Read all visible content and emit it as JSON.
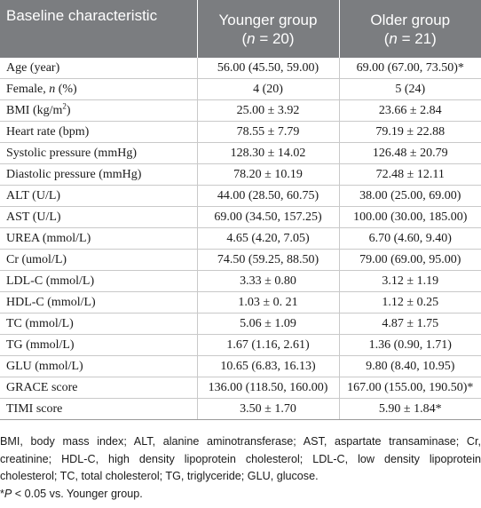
{
  "header": {
    "col1": "Baseline characteristic",
    "col2_line1": "Younger group",
    "col2_n_prefix": "(",
    "col2_n_italic": "n",
    "col2_n_suffix": " = 20)",
    "col3_line1": "Older group",
    "col3_n_prefix": "(",
    "col3_n_italic": "n",
    "col3_n_suffix": " = 21)"
  },
  "rows": {
    "age": {
      "label": "Age (year)",
      "younger": "56.00 (45.50, 59.00)",
      "older": "69.00 (67.00, 73.50)*"
    },
    "female": {
      "label_pre": "Female, ",
      "label_italic": "n",
      "label_post": " (%)",
      "younger": "4 (20)",
      "older": "5 (24)"
    },
    "bmi": {
      "label_pre": "BMI (kg/m",
      "label_sup": "2",
      "label_post": ")",
      "younger": "25.00 ± 3.92",
      "older": "23.66 ± 2.84"
    },
    "heart_rate": {
      "label": "Heart rate (bpm)",
      "younger": "78.55 ± 7.79",
      "older": "79.19 ± 22.88"
    },
    "systolic": {
      "label": "Systolic pressure (mmHg)",
      "younger": "128.30 ± 14.02",
      "older": "126.48 ± 20.79"
    },
    "diastolic": {
      "label": "Diastolic pressure (mmHg)",
      "younger": "78.20 ± 10.19",
      "older": "72.48 ± 12.11"
    },
    "alt": {
      "label": "ALT (U/L)",
      "younger": "44.00 (28.50, 60.75)",
      "older": "38.00 (25.00, 69.00)"
    },
    "ast": {
      "label": "AST (U/L)",
      "younger": "69.00 (34.50, 157.25)",
      "older": "100.00 (30.00, 185.00)"
    },
    "urea": {
      "label": "UREA (mmol/L)",
      "younger": "4.65 (4.20, 7.05)",
      "older": "6.70 (4.60, 9.40)"
    },
    "cr": {
      "label": "Cr (umol/L)",
      "younger": "74.50 (59.25, 88.50)",
      "older": "79.00 (69.00, 95.00)"
    },
    "ldl": {
      "label": "LDL-C (mmol/L)",
      "younger": "3.33 ± 0.80",
      "older": "3.12 ± 1.19"
    },
    "hdl": {
      "label": "HDL-C (mmol/L)",
      "younger": "1.03 ± 0. 21",
      "older": "1.12 ± 0.25"
    },
    "tc": {
      "label": "TC (mmol/L)",
      "younger": "5.06 ± 1.09",
      "older": "4.87 ± 1.75"
    },
    "tg": {
      "label": "TG (mmol/L)",
      "younger": "1.67 (1.16, 2.61)",
      "older": "1.36 (0.90, 1.71)"
    },
    "glu": {
      "label": "GLU (mmol/L)",
      "younger": "10.65 (6.83, 16.13)",
      "older": "9.80 (8.40, 10.95)"
    },
    "grace": {
      "label": "GRACE score",
      "younger": "136.00 (118.50, 160.00)",
      "older": "167.00 (155.00, 190.50)*"
    },
    "timi": {
      "label": "TIMI score",
      "younger": "3.50 ± 1.70",
      "older": "5.90 ± 1.84*"
    }
  },
  "footnote": {
    "abbreviations": "BMI, body mass index; ALT, alanine aminotransferase; AST, aspartate transaminase; Cr, creatinine; HDL-C, high density lipoprotein cholesterol; LDL-C, low density lipoprotein cholesterol; TC, total cholesterol; TG, triglyceride; GLU, glucose.",
    "sig_star": "*",
    "sig_p": "P",
    "sig_rest": " < 0.05 vs. Younger group."
  }
}
